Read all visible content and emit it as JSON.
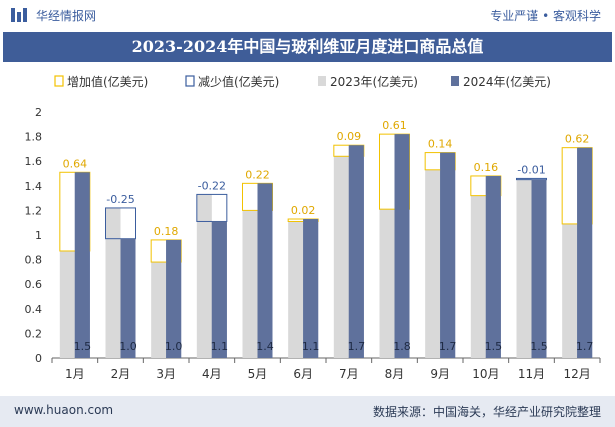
{
  "header": {
    "brand": "华经情报网",
    "tagline": "专业严谨 • 客观科学"
  },
  "colors": {
    "increase": "#f2c200",
    "decrease": "#3b5d9e",
    "bar2023": "#d9d9d9",
    "bar2024": "#5f719c",
    "title_bg": "#3f5d98"
  },
  "footer": {
    "website": "www.huaon.com",
    "source": "数据来源：中国海关，华经产业研究院整理"
  },
  "chart_data": {
    "type": "bar",
    "title": "2023-2024年中国与玻利维亚月度进口商品总值",
    "legend": [
      "增加值(亿美元)",
      "减少值(亿美元)",
      "2023年(亿美元)",
      "2024年(亿美元)"
    ],
    "categories": [
      "1月",
      "2月",
      "3月",
      "4月",
      "5月",
      "6月",
      "7月",
      "8月",
      "9月",
      "10月",
      "11月",
      "12月"
    ],
    "series": [
      {
        "name": "2023年(亿美元)",
        "values": [
          0.87,
          1.22,
          0.78,
          1.33,
          1.2,
          1.11,
          1.64,
          1.21,
          1.53,
          1.32,
          1.46,
          1.09
        ]
      },
      {
        "name": "2024年(亿美元)",
        "values": [
          1.51,
          0.97,
          0.96,
          1.11,
          1.42,
          1.13,
          1.73,
          1.82,
          1.67,
          1.48,
          1.45,
          1.71
        ]
      }
    ],
    "change_labels": [
      "0.64",
      "-0.25",
      "0.18",
      "-0.22",
      "0.22",
      "0.02",
      "0.09",
      "0.61",
      "0.14",
      "0.16",
      "-0.01",
      "0.62"
    ],
    "bar_labels": [
      "1.5",
      "1.0",
      "1.0",
      "1.1",
      "1.4",
      "1.1",
      "1.7",
      "1.8",
      "1.7",
      "1.5",
      "1.5",
      "1.7"
    ],
    "y_ticks": [
      "0",
      "0.2",
      "0.4",
      "0.6",
      "0.8",
      "1",
      "1.2",
      "1.4",
      "1.6",
      "1.8",
      "2"
    ],
    "ylim": [
      0,
      2
    ]
  }
}
